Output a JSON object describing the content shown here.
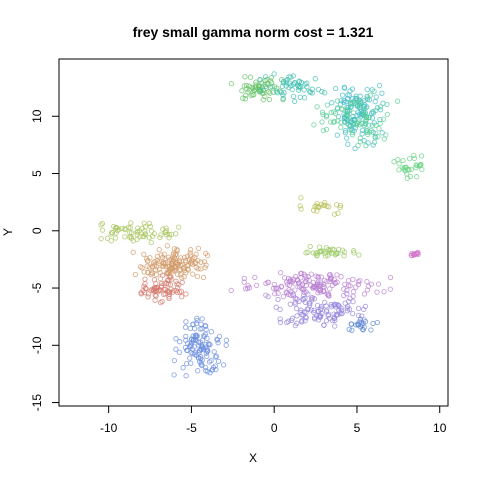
{
  "chart_data": {
    "type": "scatter",
    "title": "frey small gamma norm cost = 1.321",
    "xlabel": "X",
    "ylabel": "Y",
    "xlim": [
      -13,
      10.5
    ],
    "ylim": [
      -15.3,
      15
    ],
    "xticks": [
      -10,
      -5,
      0,
      5,
      10
    ],
    "yticks": [
      -15,
      -10,
      -5,
      0,
      5,
      10
    ],
    "grid": false,
    "legend": "none",
    "marker": "open-circle",
    "clusters": [
      {
        "color": "#66C266",
        "x_range": [
          -3.5,
          1.5
        ],
        "y_range": [
          11,
          13.8
        ],
        "count": 60
      },
      {
        "color": "#3FBFB0",
        "x_range": [
          -1.5,
          4
        ],
        "y_range": [
          11,
          14
        ],
        "count": 55
      },
      {
        "color": "#40B9C8",
        "x_range": [
          3,
          7
        ],
        "y_range": [
          7,
          14
        ],
        "count": 120
      },
      {
        "color": "#58CF95",
        "x_range": [
          2,
          8
        ],
        "y_range": [
          6.5,
          13
        ],
        "count": 90
      },
      {
        "color": "#6AD283",
        "x_range": [
          7,
          9.5
        ],
        "y_range": [
          4,
          7
        ],
        "count": 30
      },
      {
        "color": "#B6BF56",
        "x_range": [
          0.5,
          5
        ],
        "y_range": [
          1.3,
          3
        ],
        "count": 22
      },
      {
        "color": "#A7C45C",
        "x_range": [
          -12.5,
          -4.5
        ],
        "y_range": [
          -1.5,
          1
        ],
        "count": 65
      },
      {
        "color": "#98C860",
        "x_range": [
          0.8,
          5.5
        ],
        "y_range": [
          -2.5,
          -1.2
        ],
        "count": 35
      },
      {
        "color": "#D29A68",
        "x_range": [
          -9,
          -3
        ],
        "y_range": [
          -5,
          -1
        ],
        "count": 140
      },
      {
        "color": "#D47A6E",
        "x_range": [
          -8.5,
          -5
        ],
        "y_range": [
          -6.5,
          -3.5
        ],
        "count": 70
      },
      {
        "color": "#B880D2",
        "x_range": [
          -3.5,
          8
        ],
        "y_range": [
          -6.5,
          -3
        ],
        "count": 150
      },
      {
        "color": "#9585DE",
        "x_range": [
          -1,
          7
        ],
        "y_range": [
          -9,
          -5
        ],
        "count": 110
      },
      {
        "color": "#6C8FE0",
        "x_range": [
          -6.5,
          -2.5
        ],
        "y_range": [
          -13.5,
          -7
        ],
        "count": 120
      },
      {
        "color": "#5D88D6",
        "x_range": [
          4,
          6.5
        ],
        "y_range": [
          -9,
          -7.5
        ],
        "count": 20
      },
      {
        "color": "#D070C8",
        "x_range": [
          8,
          9.2
        ],
        "y_range": [
          -2.2,
          -1.8
        ],
        "count": 12
      }
    ]
  }
}
